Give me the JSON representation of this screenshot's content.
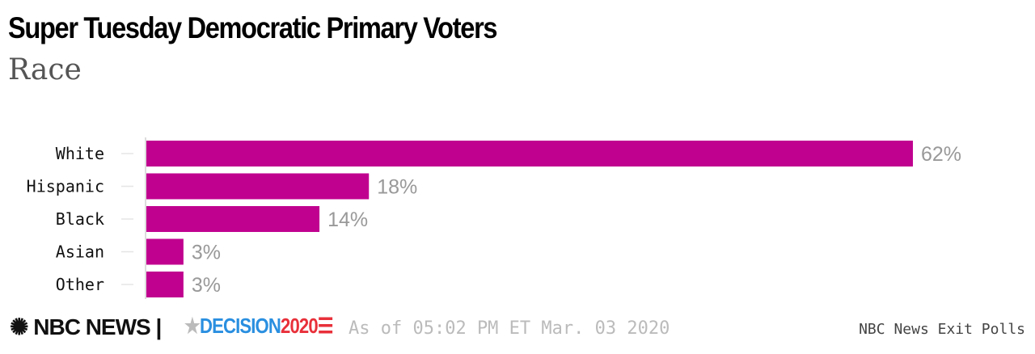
{
  "chart_data": {
    "type": "bar",
    "orientation": "horizontal",
    "title": "Super Tuesday Democratic Primary Voters",
    "subtitle": "Race",
    "categories": [
      "White",
      "Hispanic",
      "Black",
      "Asian",
      "Other"
    ],
    "values": [
      62,
      18,
      14,
      3,
      3
    ],
    "value_labels": [
      "62%",
      "18%",
      "14%",
      "3%",
      "3%"
    ],
    "unit": "%",
    "color": "#c0008f",
    "xlim": [
      0,
      62
    ],
    "grid": false
  },
  "footer": {
    "brand": "NBC NEWS",
    "decision": "DECISION",
    "year": "2020",
    "timestamp": "As of 05:02 PM ET Mar. 03 2020",
    "source": "NBC News Exit Polls"
  }
}
